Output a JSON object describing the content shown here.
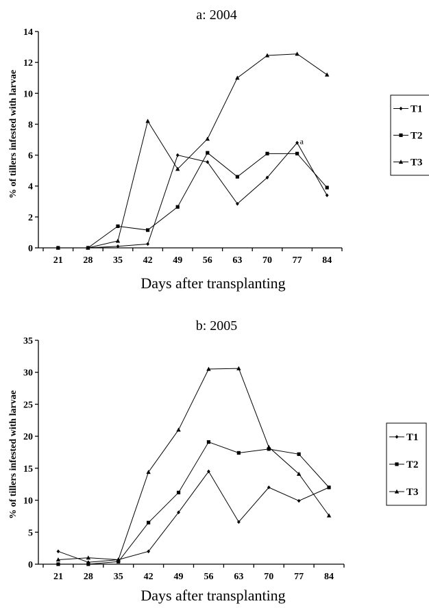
{
  "chart_data": [
    {
      "type": "line",
      "title": "a: 2004",
      "xlabel": "Days after transplanting",
      "ylabel": "% of tillers infested with larvae",
      "categories": [
        "21",
        "28",
        "35",
        "42",
        "49",
        "56",
        "63",
        "70",
        "77",
        "84"
      ],
      "ylim": [
        0,
        14
      ],
      "yticks": [
        "0",
        "2",
        "4",
        "6",
        "8",
        "10",
        "12",
        "14"
      ],
      "legend_position": "right",
      "series": [
        {
          "name": "T1",
          "marker": "diamond",
          "values": [
            0,
            0,
            0.1,
            0.25,
            6.0,
            5.55,
            2.85,
            4.55,
            6.8,
            3.4
          ]
        },
        {
          "name": "T2",
          "marker": "square",
          "values": [
            0,
            0,
            1.4,
            1.15,
            2.65,
            6.15,
            4.6,
            6.1,
            6.1,
            3.9
          ]
        },
        {
          "name": "T3",
          "marker": "triangle",
          "values": [
            0,
            0,
            0.45,
            8.2,
            5.1,
            7.05,
            11.0,
            12.45,
            12.55,
            11.2
          ]
        }
      ],
      "annotations": [
        {
          "text": "a",
          "category": "77",
          "value": 6.8
        }
      ]
    },
    {
      "type": "line",
      "title": "b: 2005",
      "xlabel": "Days after transplanting",
      "ylabel": "% of tillers infested with larvae",
      "categories": [
        "21",
        "28",
        "35",
        "42",
        "49",
        "56",
        "63",
        "70",
        "77",
        "84"
      ],
      "ylim": [
        0,
        35
      ],
      "yticks": [
        "0",
        "5",
        "10",
        "15",
        "20",
        "25",
        "30",
        "35"
      ],
      "legend_position": "right",
      "series": [
        {
          "name": "T1",
          "marker": "diamond",
          "values": [
            2.0,
            0.3,
            0.7,
            2.0,
            8.1,
            14.5,
            6.6,
            12.0,
            9.9,
            12.0
          ]
        },
        {
          "name": "T2",
          "marker": "square",
          "values": [
            0,
            0,
            0.4,
            6.5,
            11.2,
            19.1,
            17.4,
            18.0,
            17.2,
            12.0
          ]
        },
        {
          "name": "T3",
          "marker": "triangle",
          "values": [
            0.7,
            1.0,
            0.7,
            14.4,
            21.0,
            30.5,
            30.6,
            18.3,
            14.1,
            7.6
          ]
        }
      ],
      "annotations": []
    }
  ]
}
